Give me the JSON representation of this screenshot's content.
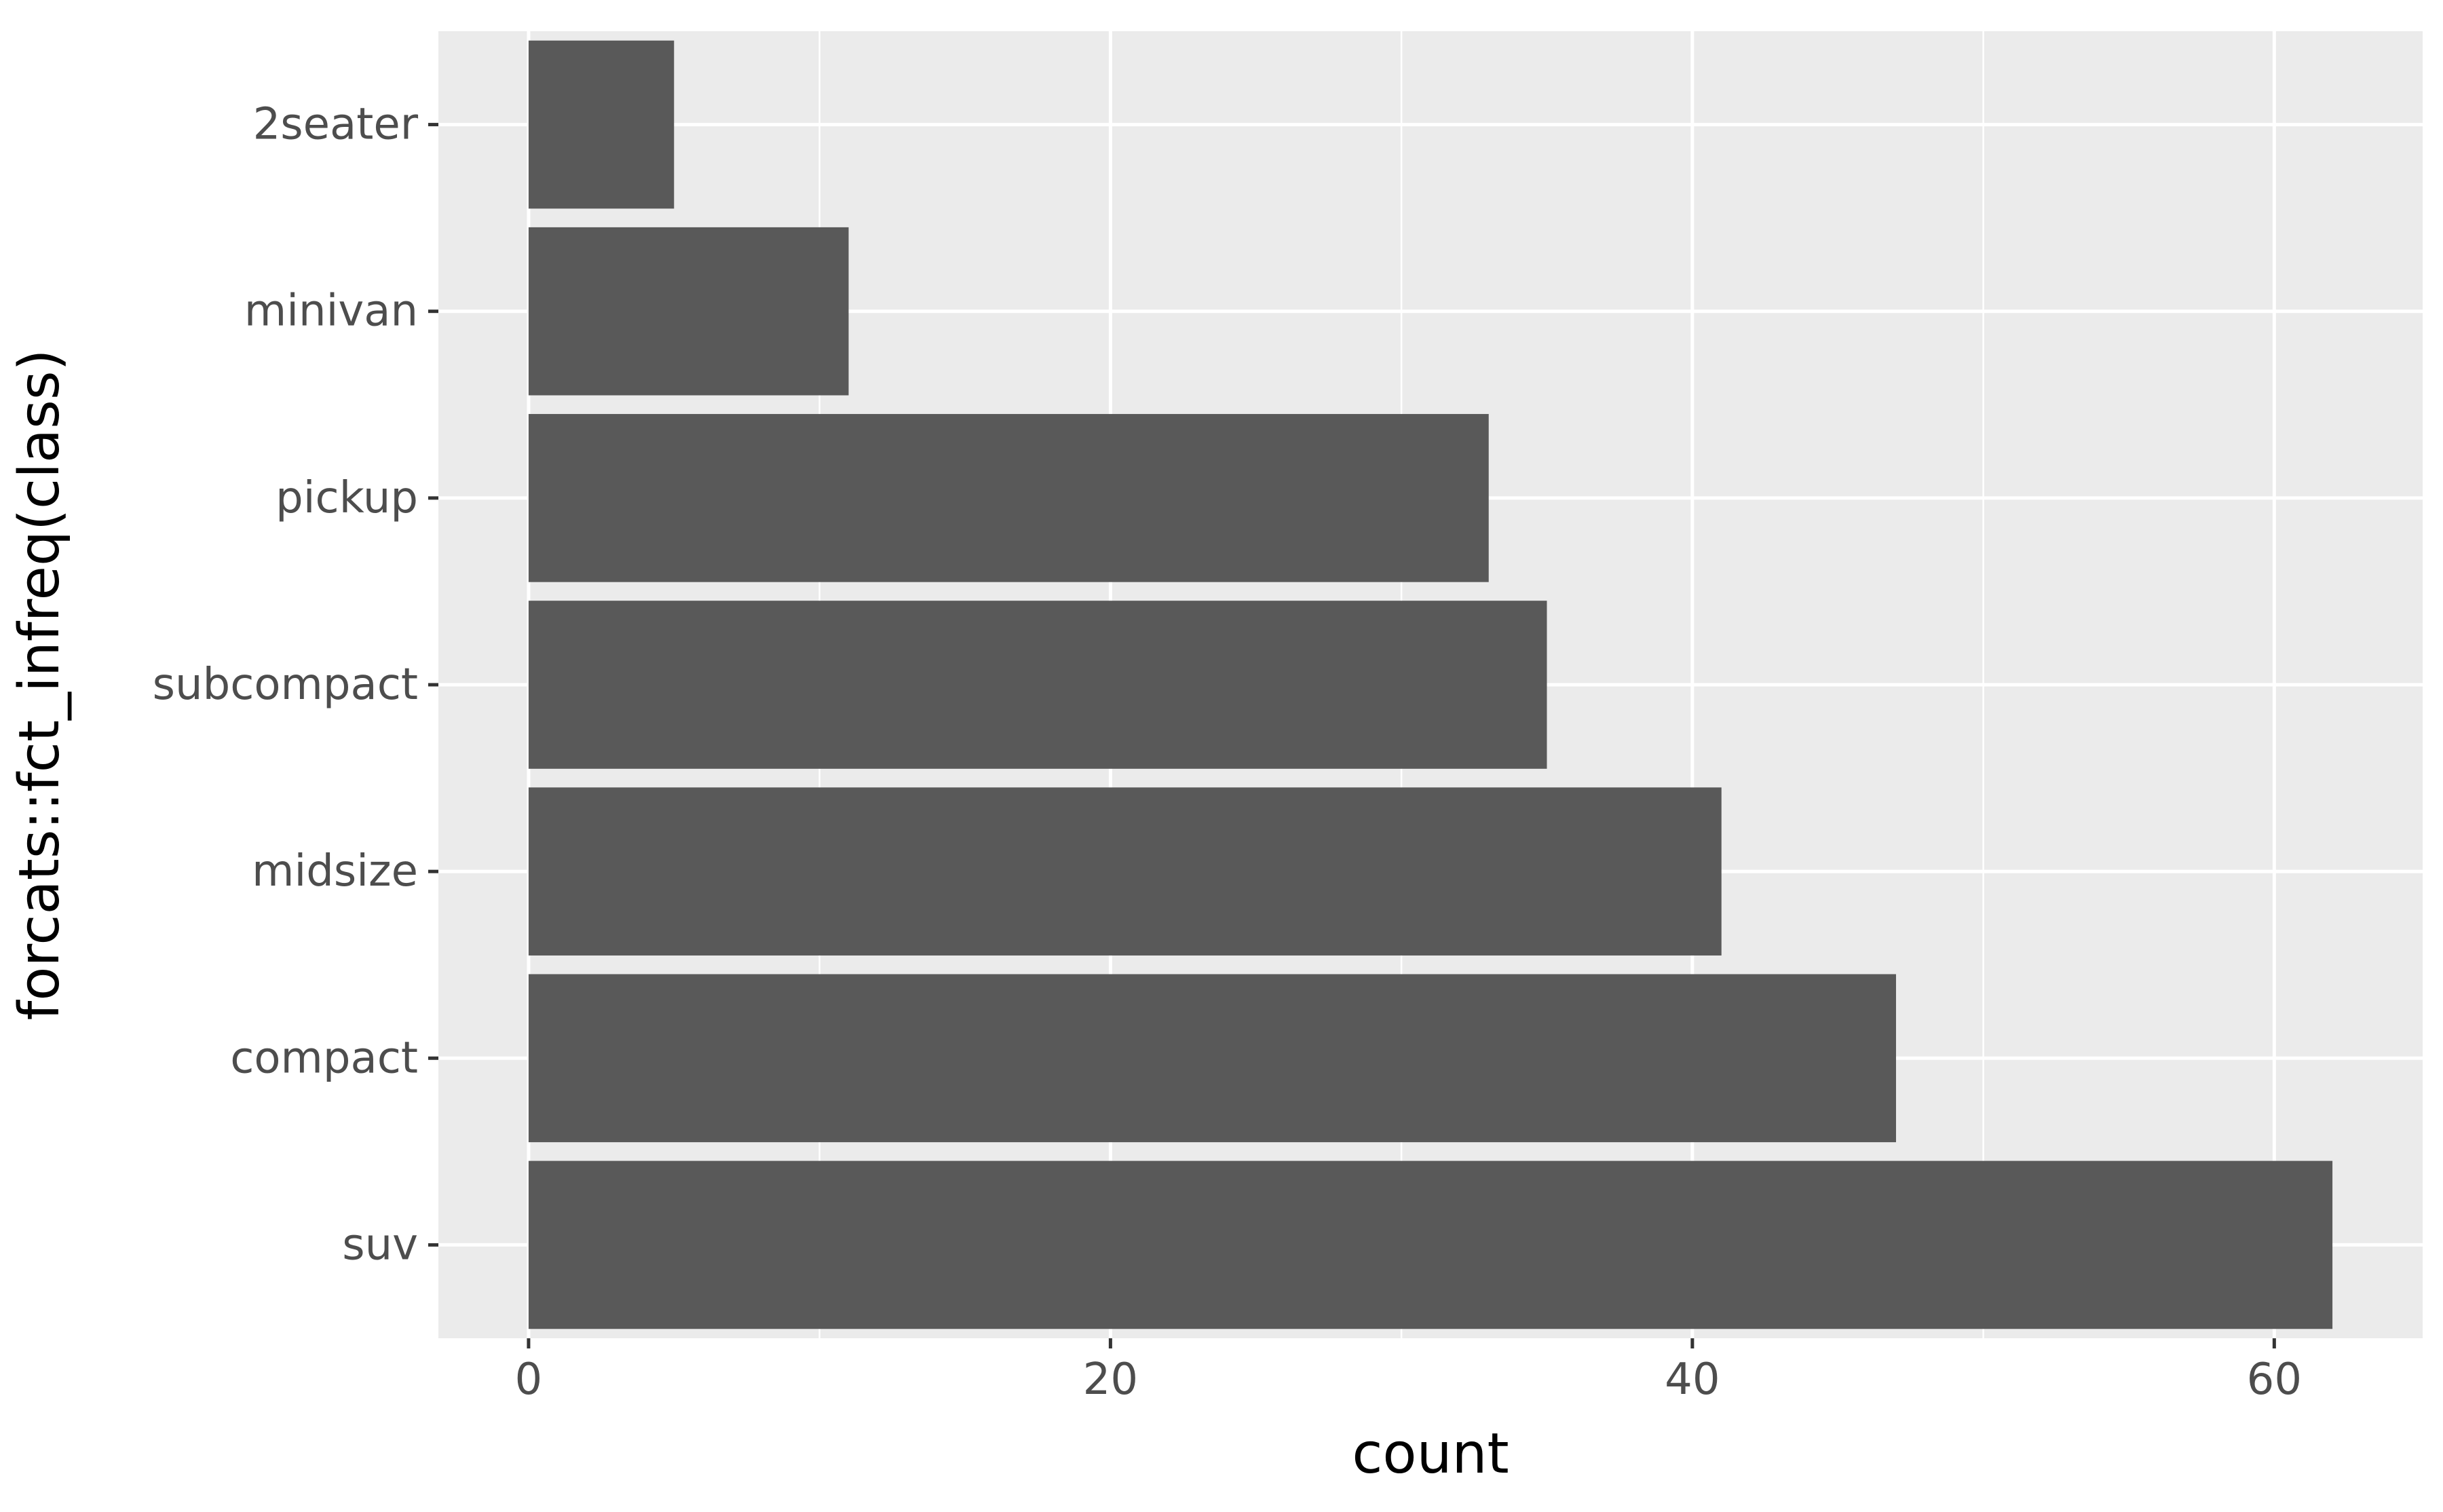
{
  "chart_data": {
    "type": "bar",
    "orientation": "horizontal",
    "categories": [
      "2seater",
      "minivan",
      "pickup",
      "subcompact",
      "midsize",
      "compact",
      "suv"
    ],
    "values": [
      5,
      11,
      33,
      35,
      41,
      47,
      62
    ],
    "xlabel": "count",
    "ylabel": "forcats::fct_infreq(class)",
    "xlim": [
      -3.1,
      65.1
    ],
    "x_ticks": [
      0,
      20,
      40,
      60
    ],
    "x_minor_ticks": [
      10,
      30,
      50
    ],
    "grid": true,
    "colors": {
      "bar": "#595959",
      "panel_background": "#ebebeb",
      "gridline": "#ffffff",
      "tick_text": "#4d4d4d",
      "axis_title": "#000000",
      "tick_mark": "#333333"
    }
  }
}
